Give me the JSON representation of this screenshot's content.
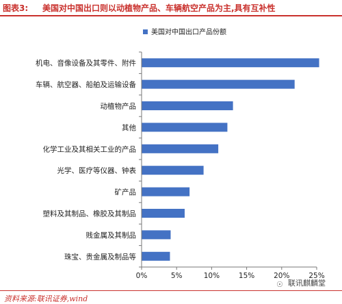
{
  "header": {
    "figure_label": "图表3:",
    "title": "美国对中国出口则以动植物产品、车辆航空产品为主,具有互补性"
  },
  "footer": {
    "source": "资料来源:联讯证券,wind",
    "watermark": "联讯麒麟堂",
    "watermark_icon": "wechat-icon"
  },
  "chart_data": {
    "type": "bar",
    "orientation": "horizontal",
    "title": "",
    "xlabel": "",
    "ylabel": "",
    "legend": {
      "entries": [
        "美国对中国出口产品份额"
      ],
      "position": "top"
    },
    "categories": [
      "机电、音像设备及其零件、附件",
      "车辆、航空器、船舶及运输设备",
      "动植物产品",
      "其他",
      "化学工业及其相关工业的产品",
      "光学、医疗等仪器、钟表",
      "矿产品",
      "塑料及其制品、橡胶及其制品",
      "贱金属及其制品",
      "珠宝、贵金属及制品等"
    ],
    "series": [
      {
        "name": "美国对中国出口产品份额",
        "values": [
          25.3,
          21.8,
          13.0,
          12.2,
          10.9,
          8.8,
          6.8,
          6.1,
          4.1,
          4.0
        ]
      }
    ],
    "xlim": [
      0,
      25
    ],
    "x_ticks": [
      "0%",
      "5%",
      "10%",
      "15%",
      "20%",
      "25%"
    ],
    "grid": false,
    "color": "#4472c4"
  }
}
